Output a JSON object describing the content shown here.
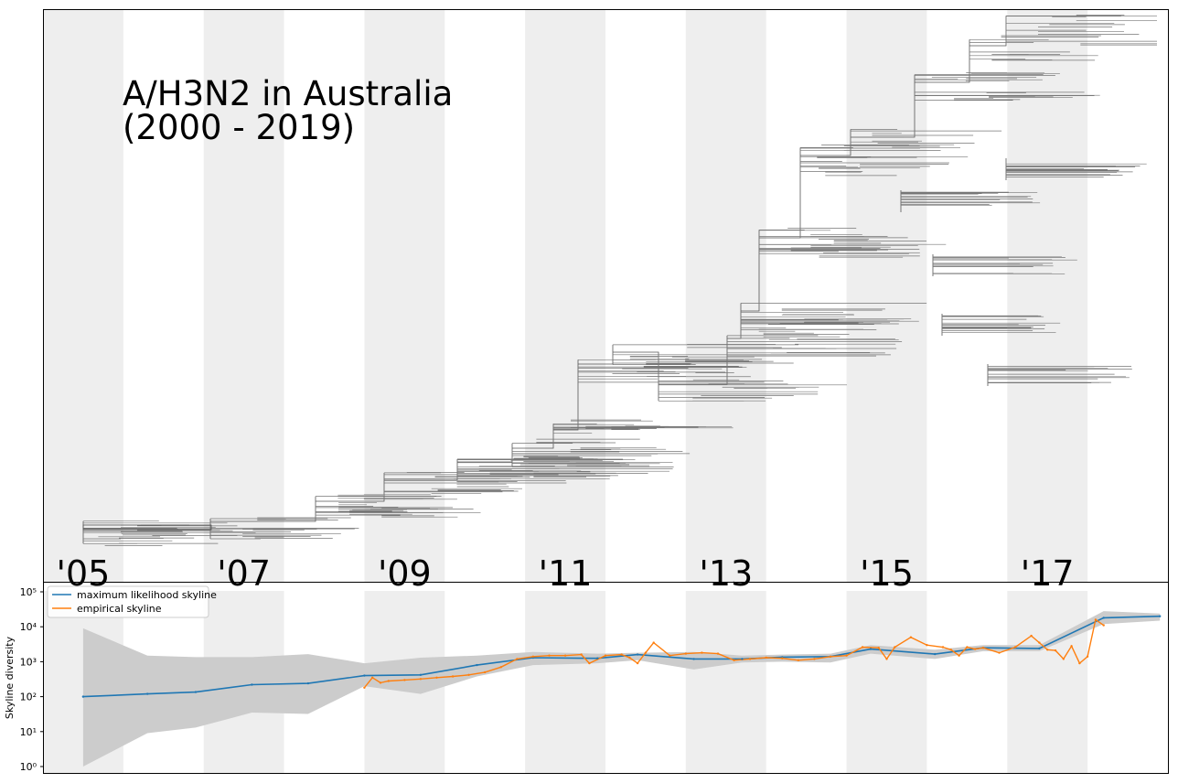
{
  "chart_data": [
    {
      "type": "tree",
      "title": "A/H3N2 in Australia",
      "subtitle": "(2000 - 2019)",
      "x_axis_year_labels": [
        "'05",
        "'07",
        "'09",
        "'11",
        "'13",
        "'15",
        "'17"
      ],
      "x_range_years": [
        2004.5,
        2018.5
      ],
      "shaded_bands_years": [
        [
          2004.5,
          2005.5
        ],
        [
          2006.5,
          2007.5
        ],
        [
          2008.5,
          2009.5
        ],
        [
          2010.5,
          2011.5
        ],
        [
          2012.5,
          2013.5
        ],
        [
          2014.5,
          2015.5
        ],
        [
          2016.5,
          2017.5
        ]
      ],
      "band_color": "#eeeeee",
      "branch_color": "#555555",
      "tip_color": "#777777"
    },
    {
      "type": "line",
      "ylabel": "Skyline diversity",
      "yscale": "log",
      "ylim": [
        0.6,
        100000
      ],
      "ytick_labels": [
        "10⁰",
        "10¹",
        "10²",
        "10³",
        "10⁴",
        "10⁵"
      ],
      "ytick_values": [
        1,
        10,
        100,
        1000,
        10000,
        100000
      ],
      "legend_position": "top-left",
      "grid": false,
      "series": [
        {
          "name": "maximum likelihood skyline",
          "color": "#1f77b4",
          "x": [
            2005.0,
            2005.8,
            2006.4,
            2007.1,
            2007.8,
            2008.5,
            2009.2,
            2009.9,
            2010.6,
            2011.4,
            2011.9,
            2012.6,
            2013.2,
            2013.7,
            2014.3,
            2014.8,
            2015.6,
            2016.2,
            2016.9,
            2017.7,
            2018.4
          ],
          "y": [
            100,
            120,
            135,
            220,
            240,
            400,
            420,
            800,
            1300,
            1250,
            1600,
            1200,
            1200,
            1350,
            1400,
            2300,
            1650,
            2500,
            2400,
            18000,
            20000
          ],
          "band_lower": [
            1,
            9,
            13,
            35,
            32,
            200,
            120,
            380,
            800,
            900,
            1100,
            600,
            950,
            1000,
            950,
            1700,
            1200,
            2000,
            2000,
            12000,
            15000
          ],
          "band_upper": [
            9000,
            1500,
            1350,
            1350,
            1650,
            900,
            1300,
            1500,
            1900,
            1700,
            1800,
            1900,
            1500,
            1600,
            1700,
            3000,
            2200,
            3000,
            3000,
            28000,
            24000
          ]
        },
        {
          "name": "empirical skyline",
          "color": "#ff7f0e",
          "x": [
            2008.5,
            2008.6,
            2008.7,
            2008.8,
            2009.0,
            2009.2,
            2009.4,
            2009.6,
            2009.8,
            2010.0,
            2010.2,
            2010.4,
            2010.6,
            2010.8,
            2011.0,
            2011.2,
            2011.3,
            2011.5,
            2011.7,
            2011.8,
            2011.9,
            2012.0,
            2012.1,
            2012.3,
            2012.5,
            2012.7,
            2012.9,
            2013.1,
            2013.3,
            2013.5,
            2013.7,
            2013.9,
            2014.1,
            2014.3,
            2014.5,
            2014.7,
            2014.9,
            2015.0,
            2015.1,
            2015.3,
            2015.5,
            2015.7,
            2015.8,
            2015.9,
            2016.0,
            2016.1,
            2016.2,
            2016.4,
            2016.6,
            2016.8,
            2016.9,
            2017.0,
            2017.1,
            2017.2,
            2017.3,
            2017.4,
            2017.5,
            2017.6,
            2017.7
          ],
          "y": [
            180,
            350,
            250,
            280,
            300,
            320,
            350,
            380,
            420,
            500,
            700,
            1200,
            1400,
            1500,
            1500,
            1600,
            900,
            1500,
            1600,
            1300,
            900,
            1800,
            3500,
            1500,
            1700,
            1800,
            1700,
            1100,
            1200,
            1300,
            1250,
            1100,
            1200,
            1400,
            1500,
            2600,
            2500,
            1200,
            2600,
            5000,
            3000,
            2600,
            2200,
            1500,
            2600,
            2300,
            2500,
            1800,
            2600,
            5500,
            3500,
            2200,
            2100,
            1200,
            2800,
            900,
            1400,
            16000,
            11000
          ]
        }
      ]
    }
  ]
}
